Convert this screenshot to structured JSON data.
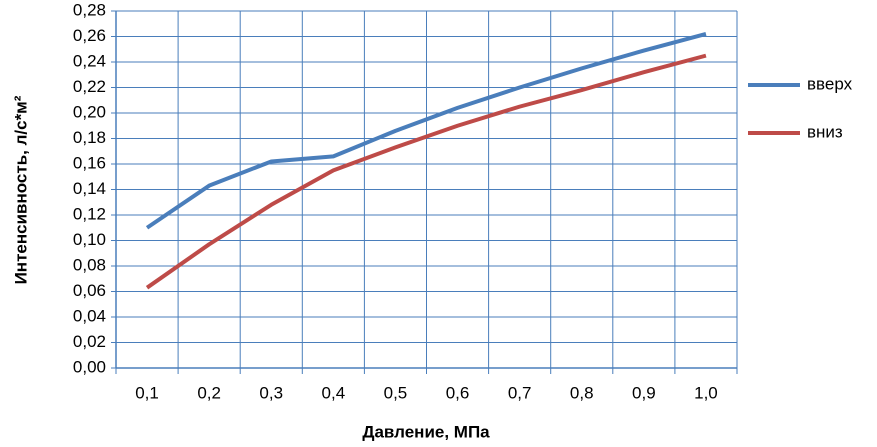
{
  "chart_data": {
    "type": "line",
    "x_label": "Давление, МПа",
    "y_label": "Интенсивность, л/с*м²",
    "categories": [
      "0,1",
      "0,2",
      "0,3",
      "0,4",
      "0,5",
      "0,6",
      "0,7",
      "0,8",
      "0,9",
      "1,0"
    ],
    "series": [
      {
        "name": "вверх",
        "color": "#4a7ebb",
        "values": [
          0.11,
          0.143,
          0.162,
          0.166,
          0.186,
          0.204,
          0.22,
          0.235,
          0.249,
          0.262
        ]
      },
      {
        "name": "вниз",
        "color": "#be4b48",
        "values": [
          0.063,
          0.097,
          0.128,
          0.155,
          0.173,
          0.19,
          0.205,
          0.218,
          0.232,
          0.245
        ]
      }
    ],
    "ylim": [
      0,
      0.28
    ],
    "yticks": [
      {
        "value": 0,
        "label": "0,00"
      },
      {
        "value": 0.02,
        "label": "0,02"
      },
      {
        "value": 0.04,
        "label": "0,04"
      },
      {
        "value": 0.06,
        "label": "0,06"
      },
      {
        "value": 0.08,
        "label": "0,08"
      },
      {
        "value": 0.1,
        "label": "0,10"
      },
      {
        "value": 0.12,
        "label": "0,12"
      },
      {
        "value": 0.14,
        "label": "0,14"
      },
      {
        "value": 0.16,
        "label": "0,16"
      },
      {
        "value": 0.18,
        "label": "0,18"
      },
      {
        "value": 0.2,
        "label": "0,20"
      },
      {
        "value": 0.22,
        "label": "0,22"
      },
      {
        "value": 0.24,
        "label": "0,24"
      },
      {
        "value": 0.26,
        "label": "0,26"
      },
      {
        "value": 0.28,
        "label": "0,28"
      }
    ],
    "grid": true,
    "legend": "right"
  }
}
